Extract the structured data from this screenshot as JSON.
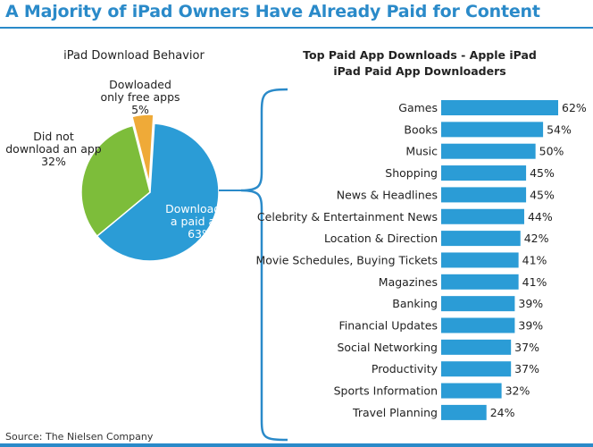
{
  "header": {
    "title": "A Majority of iPad Owners Have Already Paid for Content"
  },
  "source": "Source: The Nielsen Company",
  "colors": {
    "accent": "#2a8ac9",
    "bar": "#2b9cd6",
    "pie_paid": "#2b9cd6",
    "pie_none": "#7dbd3a",
    "pie_free": "#efaa38"
  },
  "chart_data": [
    {
      "type": "pie",
      "title": "iPad Download Behavior",
      "slices": [
        {
          "label": [
            "Downloaded",
            "a paid app"
          ],
          "value": 63,
          "value_label": "63%"
        },
        {
          "label": [
            "Did not",
            "download an app"
          ],
          "value": 32,
          "value_label": "32%"
        },
        {
          "label": [
            "Dowloaded",
            "only free apps"
          ],
          "value": 5,
          "value_label": "5%"
        }
      ]
    },
    {
      "type": "bar",
      "orientation": "horizontal",
      "title": "Top Paid App Downloads - Apple iPad",
      "subtitle": "iPad Paid App Downloaders",
      "categories": [
        "Games",
        "Books",
        "Music",
        "Shopping",
        "News & Headlines",
        "Celebrity & Entertainment News",
        "Location & Direction",
        "Movie Schedules, Buying Tickets",
        "Magazines",
        "Banking",
        "Financial Updates",
        "Social Networking",
        "Productivity",
        "Sports Information",
        "Travel Planning"
      ],
      "values": [
        62,
        54,
        50,
        45,
        45,
        44,
        42,
        41,
        41,
        39,
        39,
        37,
        37,
        32,
        24
      ],
      "value_labels": [
        "62%",
        "54%",
        "50%",
        "45%",
        "45%",
        "44%",
        "42%",
        "41%",
        "41%",
        "39%",
        "39%",
        "37%",
        "37%",
        "32%",
        "24%"
      ]
    }
  ]
}
